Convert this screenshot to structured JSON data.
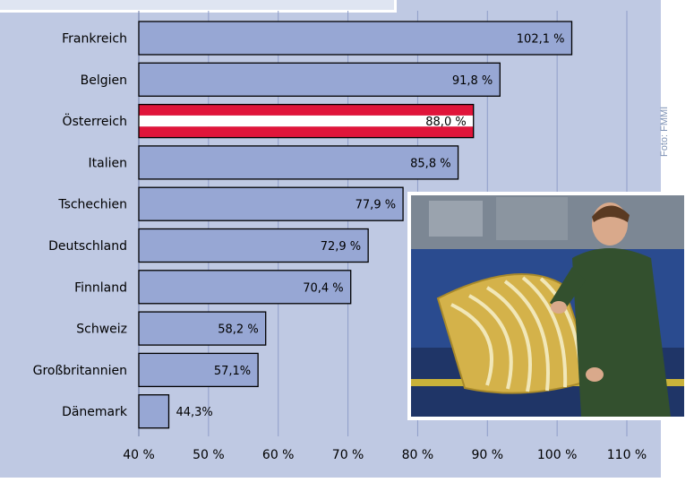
{
  "photo_credit": "Foto: FMMI",
  "colors": {
    "bar_fill": "#97a7d4",
    "bar_stroke": "#000000",
    "highlight_red": "#e0153a",
    "highlight_white": "#ffffff",
    "grid": "#8f9dc8",
    "panel": "#bfc9e3"
  },
  "chart_data": {
    "type": "bar",
    "orientation": "horizontal",
    "title": "",
    "xlabel": "",
    "ylabel": "",
    "categories": [
      "Frankreich",
      "Belgien",
      "Österreich",
      "Italien",
      "Tschechien",
      "Deutschland",
      "Finnland",
      "Schweiz",
      "Großbritannien",
      "Dänemark"
    ],
    "values": [
      102.1,
      91.8,
      88.0,
      85.8,
      77.9,
      72.9,
      70.4,
      58.2,
      57.1,
      44.3
    ],
    "value_labels": [
      "102,1 %",
      "91,8 %",
      "88,0 %",
      "85,8 %",
      "77,9 %",
      "72,9 %",
      "70,4 %",
      "58,2 %",
      "57,1%",
      "44,3%"
    ],
    "highlight": "Österreich",
    "xlim": [
      40,
      110
    ],
    "xticks": [
      40,
      50,
      60,
      70,
      80,
      90,
      100,
      110
    ],
    "xtick_labels": [
      "40 %",
      "50 %",
      "60 %",
      "70 %",
      "80 %",
      "90 %",
      "100 %",
      "110 %"
    ],
    "grid": "vertical",
    "legend": "none"
  },
  "photo": {
    "icon": "worker-with-heating-mat-photo"
  }
}
